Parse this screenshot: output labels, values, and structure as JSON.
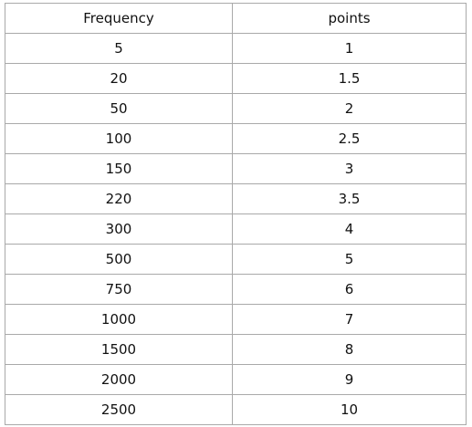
{
  "table": {
    "headers": [
      "Frequency",
      "points"
    ],
    "rows": [
      [
        "5",
        "1"
      ],
      [
        "20",
        "1.5"
      ],
      [
        "50",
        "2"
      ],
      [
        "100",
        "2.5"
      ],
      [
        "150",
        "3"
      ],
      [
        "220",
        "3.5"
      ],
      [
        "300",
        "4"
      ],
      [
        "500",
        "5"
      ],
      [
        "750",
        "6"
      ],
      [
        "1000",
        "7"
      ],
      [
        "1500",
        "8"
      ],
      [
        "2000",
        "9"
      ],
      [
        "2500",
        "10"
      ]
    ]
  }
}
